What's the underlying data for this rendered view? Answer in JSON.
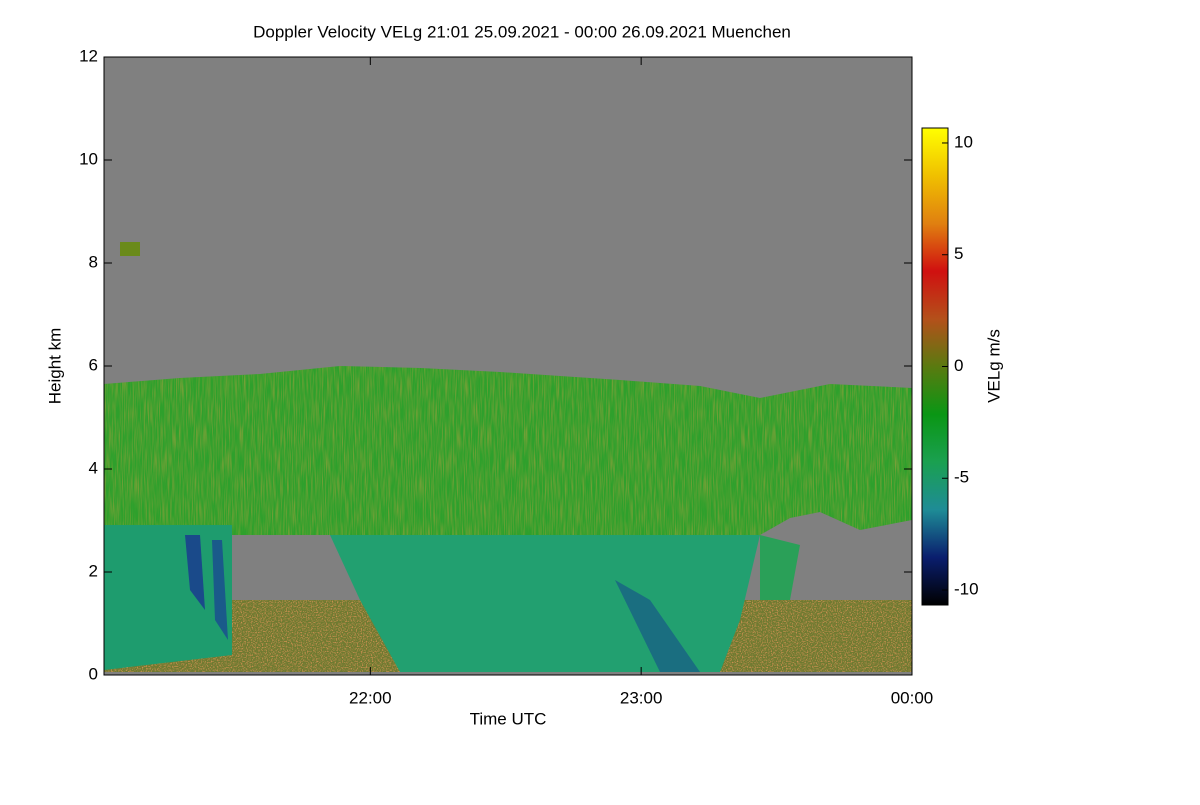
{
  "chart_data": {
    "type": "heatmap",
    "title": "Doppler Velocity VELg   21:01 25.09.2021 - 00:00 26.09.2021 Muenchen",
    "x_label": "Time UTC",
    "y_label": "Height km",
    "xlim": [
      21.0167,
      24
    ],
    "xticks": [
      {
        "value": 22,
        "label": "22:00"
      },
      {
        "value": 23,
        "label": "23:00"
      },
      {
        "value": 24,
        "label": "00:00"
      }
    ],
    "ylim": [
      0,
      12
    ],
    "yticks": [
      0,
      2,
      4,
      6,
      8,
      10,
      12
    ],
    "colorbar": {
      "label": "VELg m/s",
      "lim": [
        -10.67,
        10.67
      ],
      "ticks": [
        -10,
        -5,
        0,
        5,
        10
      ],
      "colormap": [
        "#000000",
        "#0a1e6e",
        "#1e8c96",
        "#1aa050",
        "#0a9614",
        "#5a7a10",
        "#b4501a",
        "#d01010",
        "#e08010",
        "#f0c000",
        "#ffff00"
      ]
    }
  }
}
